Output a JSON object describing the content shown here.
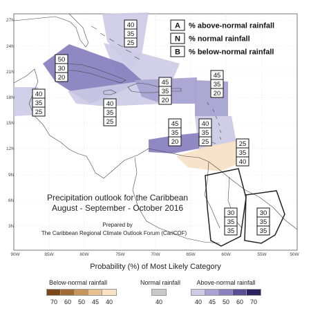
{
  "map": {
    "title_line1": "Precipitation outlook for the Caribbean",
    "title_line2": "August - September - October 2016",
    "prepared_by": "Prepared by",
    "organization": "The Caribbean Regional Climate Outlook Forum (CariCOF)",
    "lat_labels": [
      "27N",
      "24N",
      "21N",
      "18N",
      "15N",
      "12N",
      "9N",
      "6N",
      "3N"
    ],
    "lon_labels": [
      "90W",
      "85W",
      "80W",
      "75W",
      "70W",
      "65W",
      "60W",
      "55W",
      "50W"
    ],
    "key": [
      {
        "letter": "A",
        "text": "% above-normal rainfall"
      },
      {
        "letter": "N",
        "text": "% normal rainfall"
      },
      {
        "letter": "B",
        "text": "% below-normal rainfall"
      }
    ],
    "zones": [
      {
        "id": "bahamas",
        "values": [
          "40",
          "35",
          "25"
        ],
        "category": "above",
        "level": 40
      },
      {
        "id": "cuba-jamaica",
        "values": [
          "50",
          "30",
          "20"
        ],
        "category": "above",
        "level": 50
      },
      {
        "id": "western-caribbean",
        "values": [
          "40",
          "35",
          "25"
        ],
        "category": "above",
        "level": 40
      },
      {
        "id": "central-america",
        "values": [
          "40",
          "35",
          "25"
        ],
        "category": "above",
        "level": 40
      },
      {
        "id": "hispaniola-puerto-rico",
        "values": [
          "45",
          "35",
          "20"
        ],
        "category": "above",
        "level": 45
      },
      {
        "id": "northern-leewards",
        "values": [
          "45",
          "35",
          "20"
        ],
        "category": "above",
        "level": 45
      },
      {
        "id": "southern-caribbean",
        "values": [
          "45",
          "35",
          "20"
        ],
        "category": "above",
        "level": 45
      },
      {
        "id": "windwards",
        "values": [
          "40",
          "35",
          "25"
        ],
        "category": "above",
        "level": 40
      },
      {
        "id": "trinidad-guyana-coast",
        "values": [
          "25",
          "35",
          "40"
        ],
        "category": "below",
        "level": 40
      },
      {
        "id": "guyana-interior",
        "values": [
          "30",
          "35",
          "35"
        ],
        "category": "none",
        "level": 0
      },
      {
        "id": "suriname-french-guiana",
        "values": [
          "30",
          "35",
          "35"
        ],
        "category": "none",
        "level": 0
      }
    ]
  },
  "legend": {
    "title": "Probability (%) of Most Likely Category",
    "below_label": "Below-normal rainfall",
    "normal_label": "Normal rainfall",
    "above_label": "Above-normal rainfall",
    "below": [
      {
        "value": "70",
        "color": "#7a4a1a"
      },
      {
        "value": "60",
        "color": "#a06a30"
      },
      {
        "value": "50",
        "color": "#c8955a"
      },
      {
        "value": "45",
        "color": "#e6c08e"
      },
      {
        "value": "40",
        "color": "#f7e2c6"
      }
    ],
    "normal": [
      {
        "value": "40",
        "color": "#c8c8c8"
      }
    ],
    "above": [
      {
        "value": "40",
        "color": "#cdcae6"
      },
      {
        "value": "45",
        "color": "#a8a3d2"
      },
      {
        "value": "50",
        "color": "#8a82c0"
      },
      {
        "value": "60",
        "color": "#5a4f95"
      },
      {
        "value": "70",
        "color": "#2e225e"
      }
    ]
  }
}
